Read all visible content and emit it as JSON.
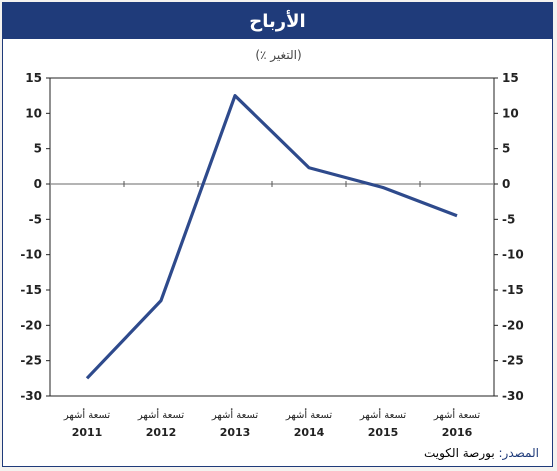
{
  "chart_data": {
    "type": "line",
    "title": "الأرباح",
    "subtitle": "(٪ التغير)",
    "categories": [
      [
        "تسعة أشهر",
        "2011"
      ],
      [
        "تسعة أشهر",
        "2012"
      ],
      [
        "تسعة أشهر",
        "2013"
      ],
      [
        "تسعة أشهر",
        "2014"
      ],
      [
        "تسعة أشهر",
        "2015"
      ],
      [
        "تسعة أشهر",
        "2016"
      ]
    ],
    "series": [
      {
        "values": [
          -27.5,
          -16.5,
          12.5,
          2.3,
          -0.5,
          -4.5
        ],
        "color": "#2e4a8c"
      }
    ],
    "ylim": [
      -30,
      15
    ],
    "yticks": [
      "15",
      "10",
      "5",
      "0",
      "-5",
      "-10",
      "-15",
      "-20",
      "-25",
      "-30"
    ],
    "grid": false,
    "zero_line": true
  },
  "source": {
    "label": "المصدر:",
    "value": "بورصة الكويت"
  }
}
